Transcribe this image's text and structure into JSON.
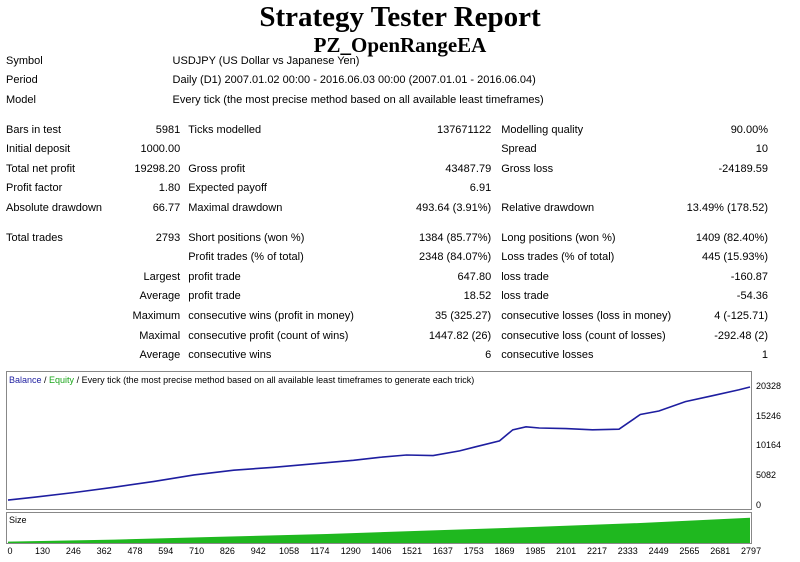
{
  "title": "Strategy Tester Report",
  "subtitle": "PZ_OpenRangeEA",
  "info": [
    {
      "label": "Symbol",
      "value": "USDJPY (US Dollar vs Japanese Yen)"
    },
    {
      "label": "Period",
      "value": "Daily (D1) 2007.01.02 00:00 - 2016.06.03 00:00 (2007.01.01 - 2016.06.04)"
    },
    {
      "label": "Model",
      "value": "Every tick (the most precise method based on all available least timeframes)"
    }
  ],
  "stats": [
    [
      "Bars in test",
      "5981",
      "Ticks modelled",
      "137671122",
      "Modelling quality",
      "90.00%"
    ],
    [
      "Initial deposit",
      "1000.00",
      "",
      "",
      "Spread",
      "10"
    ],
    [
      "Total net profit",
      "19298.20",
      "Gross profit",
      "43487.79",
      "Gross loss",
      "-24189.59"
    ],
    [
      "Profit factor",
      "1.80",
      "Expected payoff",
      "6.91",
      "",
      ""
    ],
    [
      "Absolute drawdown",
      "66.77",
      "Maximal drawdown",
      "493.64 (3.91%)",
      "Relative drawdown",
      "13.49% (178.52)"
    ]
  ],
  "trades": [
    [
      "Total trades",
      "2793",
      "Short positions (won %)",
      "1384 (85.77%)",
      "Long positions (won %)",
      "1409 (82.40%)"
    ],
    [
      "",
      "",
      "Profit trades (% of total)",
      "2348 (84.07%)",
      "Loss trades (% of total)",
      "445 (15.93%)"
    ],
    [
      "",
      "Largest",
      "profit trade",
      "647.80",
      "loss trade",
      "-160.87"
    ],
    [
      "",
      "Average",
      "profit trade",
      "18.52",
      "loss trade",
      "-54.36"
    ],
    [
      "",
      "Maximum",
      "consecutive wins (profit in money)",
      "35 (325.27)",
      "consecutive losses (loss in money)",
      "4 (-125.71)"
    ],
    [
      "",
      "Maximal",
      "consecutive profit (count of wins)",
      "1447.82 (26)",
      "consecutive loss (count of losses)",
      "-292.48 (2)"
    ],
    [
      "",
      "Average",
      "consecutive wins",
      "6",
      "consecutive losses",
      "1"
    ]
  ],
  "colors": {
    "balance": "#1e1ea0",
    "equity": "#1aa51a",
    "size": "#1fb81f"
  },
  "chart_data": {
    "type": "line",
    "legend_balance": "Balance",
    "legend_sep": " / ",
    "legend_equity": "Equity",
    "legend_rest": " / Every tick (the most precise method based on all available least timeframes to generate each trick)",
    "size_label": "Size",
    "y_ticks": [
      "20328",
      "15246",
      "10164",
      "5082",
      "0"
    ],
    "y_tick_values": [
      20328,
      15246,
      10164,
      5082,
      0
    ],
    "x_ticks": [
      "0",
      "130",
      "246",
      "362",
      "478",
      "594",
      "710",
      "826",
      "942",
      "1058",
      "1174",
      "1290",
      "1406",
      "1521",
      "1637",
      "1753",
      "1869",
      "1985",
      "2101",
      "2217",
      "2333",
      "2449",
      "2565",
      "2681",
      "2797"
    ],
    "x_tick_values": [
      0,
      130,
      246,
      362,
      478,
      594,
      710,
      826,
      942,
      1058,
      1174,
      1290,
      1406,
      1521,
      1637,
      1753,
      1869,
      1985,
      2101,
      2217,
      2333,
      2449,
      2565,
      2681,
      2797
    ],
    "xlim": [
      0,
      2793
    ],
    "ylim": [
      0,
      22000
    ],
    "series": [
      {
        "name": "Balance",
        "x": [
          0,
          100,
          250,
          400,
          550,
          700,
          850,
          1000,
          1150,
          1300,
          1400,
          1500,
          1600,
          1700,
          1760,
          1850,
          1900,
          1950,
          2000,
          2100,
          2200,
          2300,
          2380,
          2450,
          2550,
          2650,
          2750,
          2793
        ],
        "y": [
          1000,
          1500,
          2300,
          3200,
          4200,
          5300,
          6100,
          6600,
          7200,
          7800,
          8300,
          8700,
          8600,
          9400,
          10100,
          11100,
          13000,
          13500,
          13300,
          13200,
          13000,
          13100,
          15600,
          16200,
          17800,
          18800,
          19800,
          20300
        ]
      }
    ],
    "size_series": {
      "x": [
        0,
        400,
        800,
        1200,
        1600,
        2000,
        2400,
        2793
      ],
      "y": [
        0.05,
        0.12,
        0.22,
        0.32,
        0.45,
        0.58,
        0.72,
        0.9
      ]
    }
  }
}
